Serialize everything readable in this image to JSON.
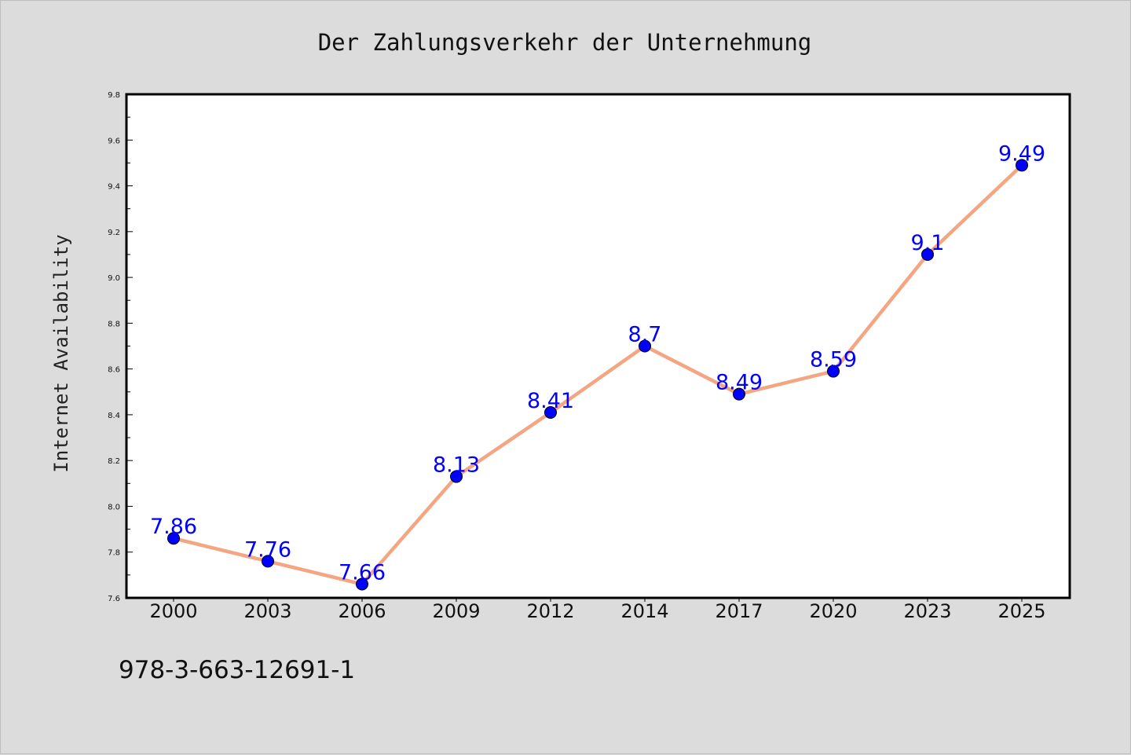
{
  "footer": {
    "code": "978-3-663-12691-1"
  },
  "colors": {
    "background": "#dcdcdc",
    "plot_area": "#ffffff",
    "line": "#f4a582",
    "marker": "#0000ff",
    "data_label": "#0000ff"
  },
  "chart_data": {
    "type": "line",
    "title": "Der Zahlungsverkehr der Unternehmung",
    "xlabel": "",
    "ylabel": "Internet Availability",
    "categories": [
      "2000",
      "2003",
      "2006",
      "2009",
      "2012",
      "2014",
      "2017",
      "2020",
      "2023",
      "2025"
    ],
    "series": [
      {
        "values": [
          7.86,
          7.76,
          7.66,
          8.13,
          8.41,
          8.7,
          8.49,
          8.59,
          9.1,
          9.49
        ],
        "labels": [
          "7.86",
          "7.76",
          "7.66",
          "8.13",
          "8.41",
          "8.7",
          "8.49",
          "8.59",
          "9.1",
          "9.49"
        ]
      }
    ],
    "ylim": [
      7.6,
      9.8
    ],
    "yticks": [
      "7.6",
      "7.8",
      "8.0",
      "8.2",
      "8.4",
      "8.6",
      "8.8",
      "9.0",
      "9.2",
      "9.4",
      "9.6",
      "9.8"
    ],
    "grid": false,
    "legend": "none",
    "markers": "filled circles",
    "data_labels": true
  }
}
